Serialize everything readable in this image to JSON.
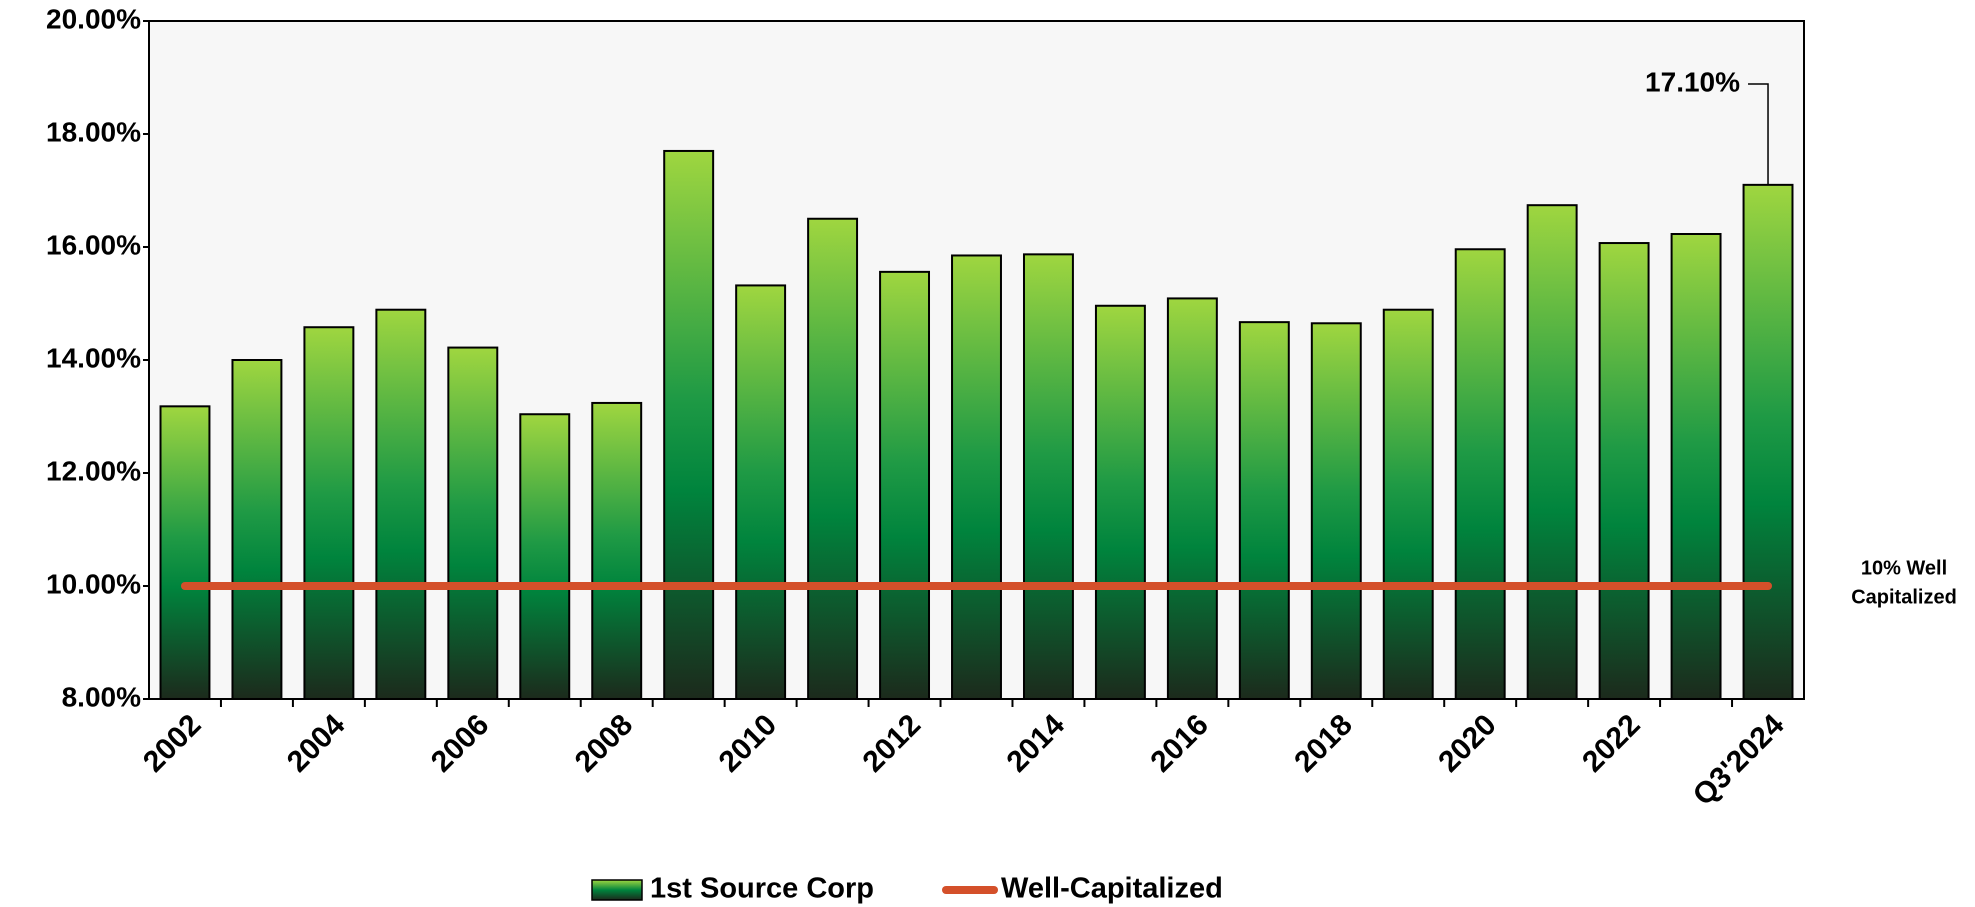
{
  "chart_data": {
    "type": "bar",
    "categories": [
      "2002",
      null,
      "2004",
      null,
      "2006",
      null,
      "2008",
      null,
      "2010",
      null,
      "2012",
      null,
      "2014",
      null,
      "2016",
      null,
      "2018",
      null,
      "2020",
      null,
      "2022",
      null,
      "Q3'2024"
    ],
    "series": [
      {
        "name": "1st Source Corp",
        "color": "#00843d",
        "values": [
          13.18,
          14.0,
          14.58,
          14.89,
          14.22,
          13.04,
          13.24,
          17.7,
          15.32,
          16.5,
          15.56,
          15.85,
          15.87,
          14.96,
          15.09,
          14.67,
          14.65,
          14.89,
          15.96,
          16.74,
          16.07,
          16.23,
          17.1
        ],
        "value_labels": [
          null,
          null,
          null,
          null,
          null,
          null,
          null,
          null,
          null,
          null,
          null,
          null,
          null,
          null,
          null,
          null,
          null,
          null,
          null,
          null,
          null,
          null,
          "17.10%"
        ]
      }
    ],
    "reference_lines": [
      {
        "name": "Well-Capitalized",
        "value": 10,
        "color": "#d4502a",
        "label": [
          "10% Well",
          "Capitalized"
        ]
      }
    ],
    "ylim": [
      8,
      20
    ],
    "yticks": [
      {
        "value": 8,
        "label": "8.00%"
      },
      {
        "value": 10,
        "label": "10.00%"
      },
      {
        "value": 12,
        "label": "12.00%"
      },
      {
        "value": 14,
        "label": "14.00%"
      },
      {
        "value": 16,
        "label": "16.00%"
      },
      {
        "value": 18,
        "label": "18.00%"
      },
      {
        "value": 20,
        "label": "20.00%"
      }
    ],
    "legend": "bottom"
  }
}
